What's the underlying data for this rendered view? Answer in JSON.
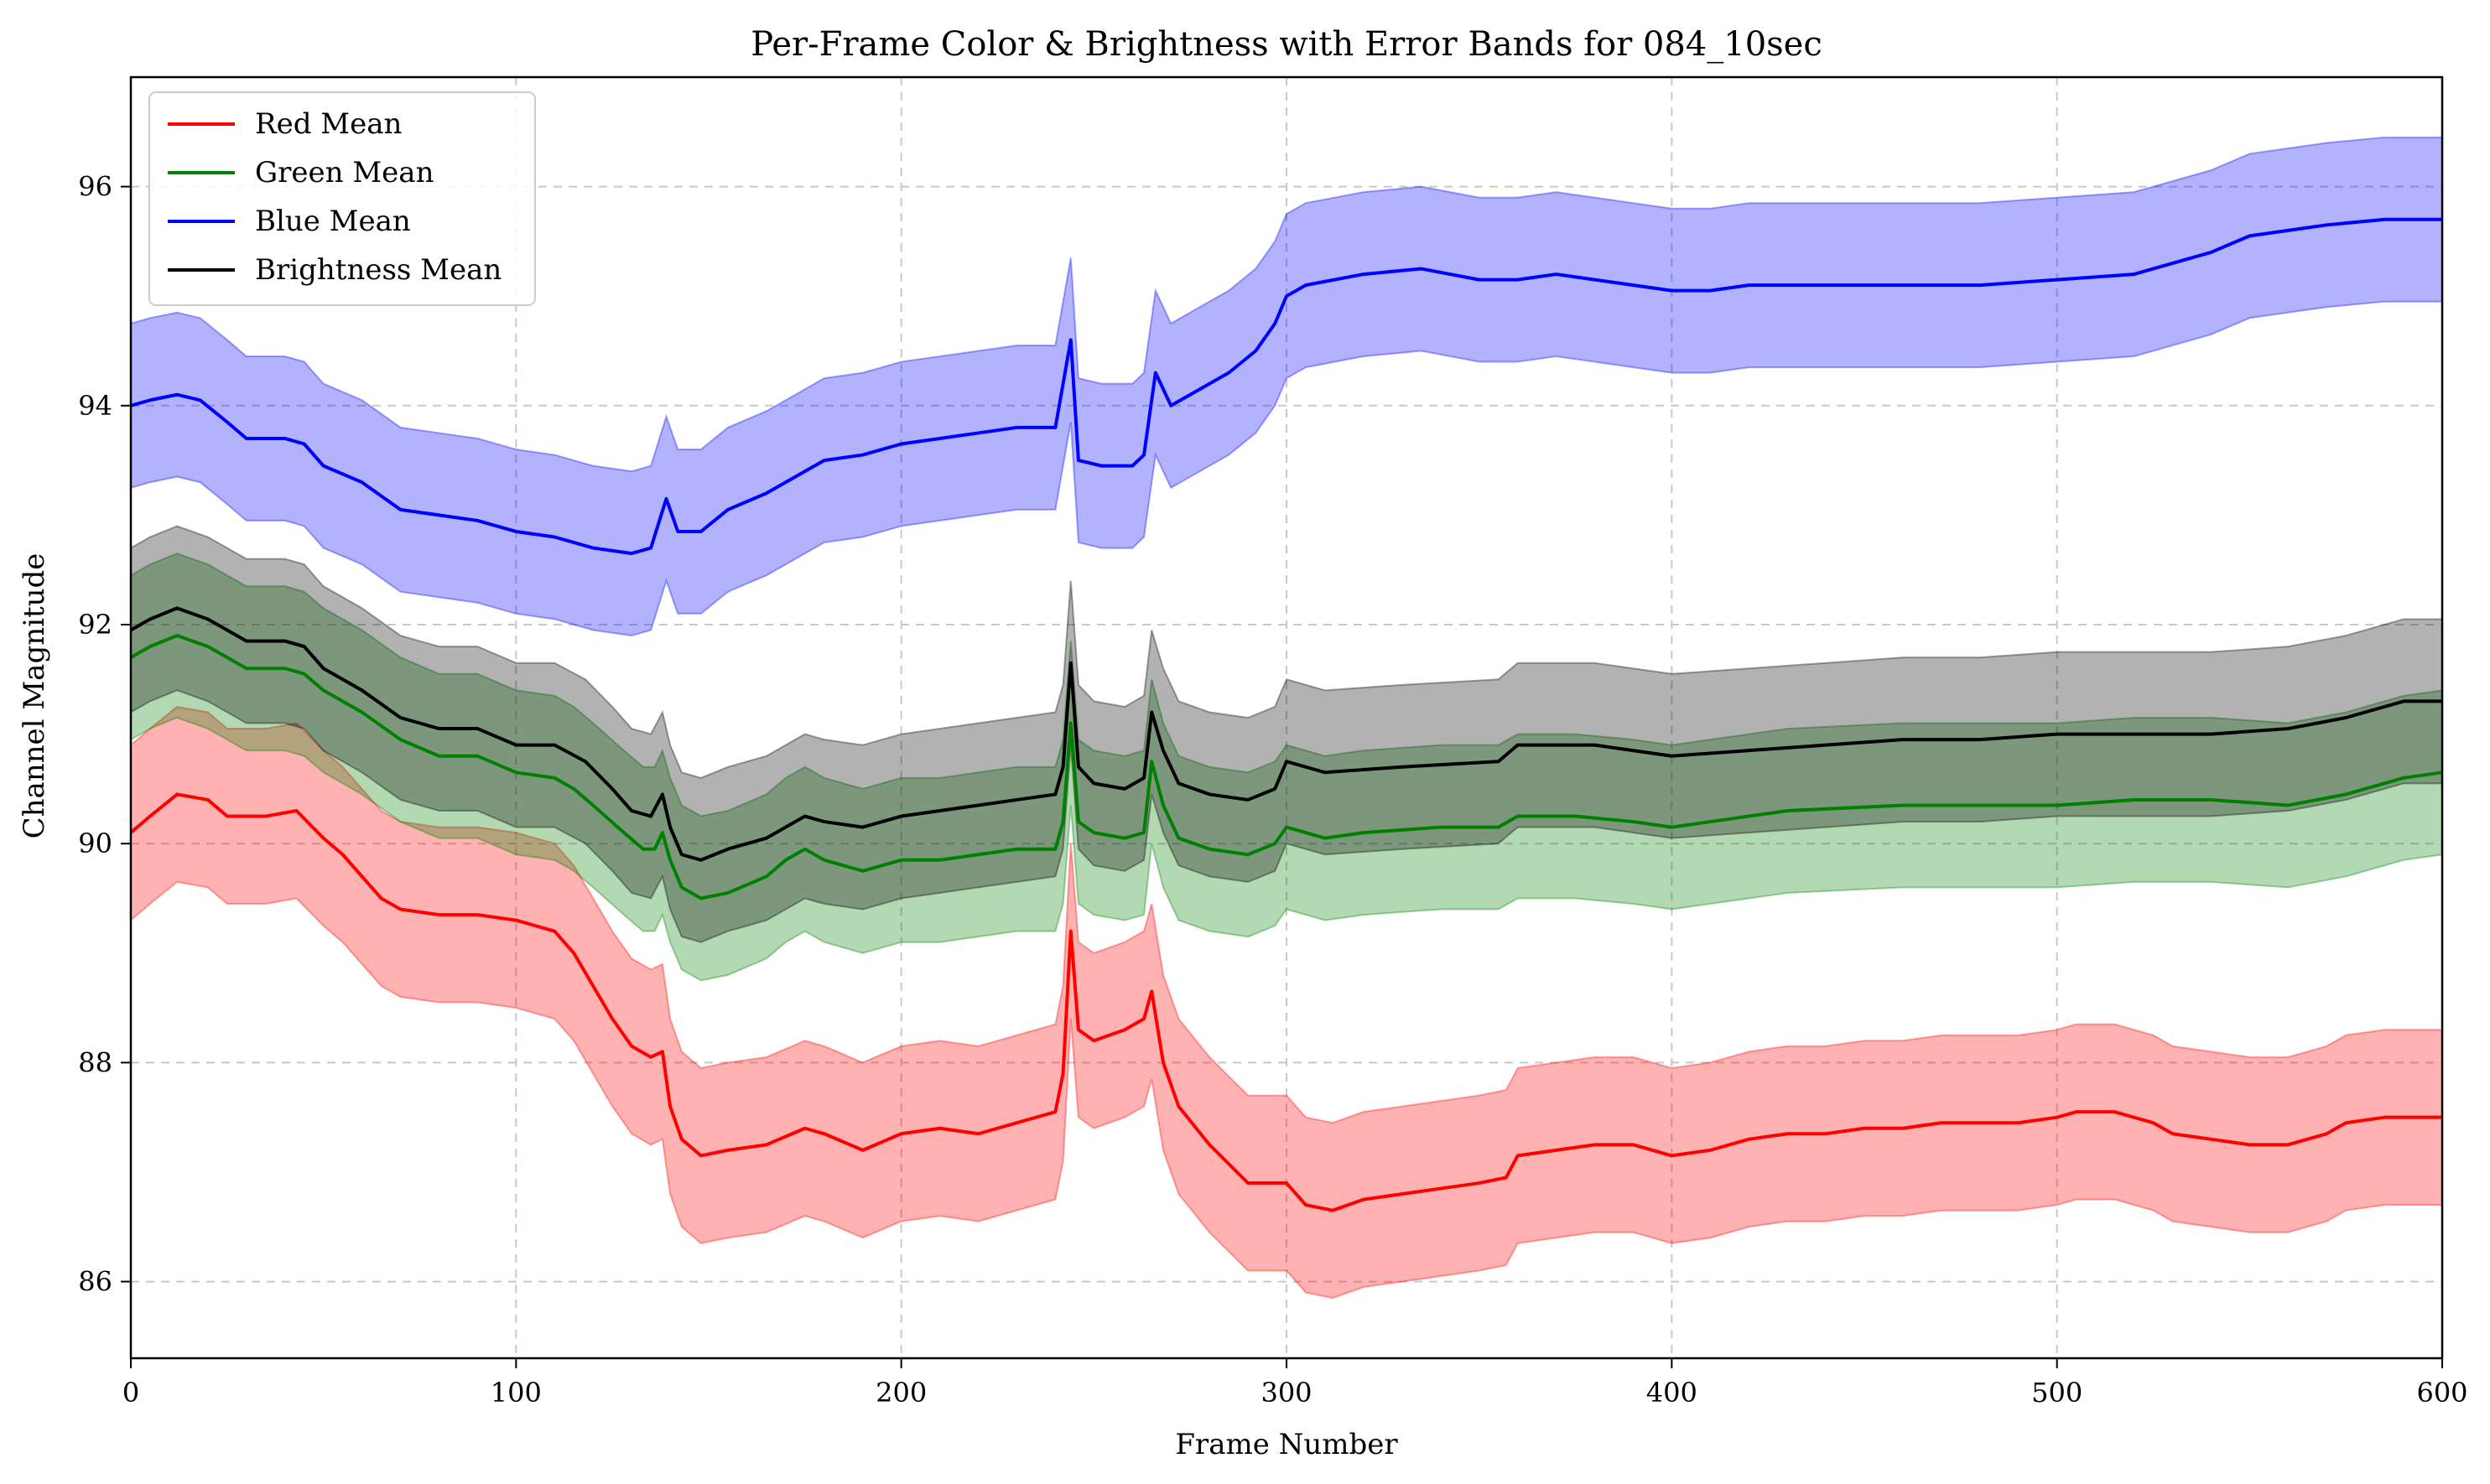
{
  "chart_data": {
    "type": "line",
    "title": "Per-Frame Color & Brightness with Error Bands for 084_10sec",
    "xlabel": "Frame Number",
    "ylabel": "Channel Magnitude",
    "xlim": [
      0,
      600
    ],
    "ylim": [
      85.3,
      97.0
    ],
    "xticks": [
      0,
      100,
      200,
      300,
      400,
      500,
      600
    ],
    "yticks": [
      86,
      88,
      90,
      92,
      94,
      96
    ],
    "grid": true,
    "legend_position": "top-left",
    "series": [
      {
        "name": "Red Mean",
        "color": "#ff0000",
        "band_color": "#ff0000",
        "band_halfwidth": 0.8,
        "points": [
          [
            0,
            90.1
          ],
          [
            5,
            90.25
          ],
          [
            12,
            90.45
          ],
          [
            20,
            90.4
          ],
          [
            25,
            90.25
          ],
          [
            35,
            90.25
          ],
          [
            43,
            90.3
          ],
          [
            50,
            90.05
          ],
          [
            55,
            89.9
          ],
          [
            60,
            89.7
          ],
          [
            65,
            89.5
          ],
          [
            70,
            89.4
          ],
          [
            80,
            89.35
          ],
          [
            90,
            89.35
          ],
          [
            100,
            89.3
          ],
          [
            110,
            89.2
          ],
          [
            115,
            89.0
          ],
          [
            120,
            88.7
          ],
          [
            125,
            88.4
          ],
          [
            130,
            88.15
          ],
          [
            135,
            88.05
          ],
          [
            138,
            88.1
          ],
          [
            140,
            87.6
          ],
          [
            143,
            87.3
          ],
          [
            148,
            87.15
          ],
          [
            155,
            87.2
          ],
          [
            165,
            87.25
          ],
          [
            175,
            87.4
          ],
          [
            180,
            87.35
          ],
          [
            190,
            87.2
          ],
          [
            200,
            87.35
          ],
          [
            210,
            87.4
          ],
          [
            220,
            87.35
          ],
          [
            230,
            87.45
          ],
          [
            240,
            87.55
          ],
          [
            242,
            87.9
          ],
          [
            244,
            89.2
          ],
          [
            246,
            88.3
          ],
          [
            250,
            88.2
          ],
          [
            258,
            88.3
          ],
          [
            263,
            88.4
          ],
          [
            265,
            88.65
          ],
          [
            268,
            88.0
          ],
          [
            272,
            87.6
          ],
          [
            280,
            87.25
          ],
          [
            290,
            86.9
          ],
          [
            300,
            86.9
          ],
          [
            305,
            86.7
          ],
          [
            312,
            86.65
          ],
          [
            320,
            86.75
          ],
          [
            330,
            86.8
          ],
          [
            340,
            86.85
          ],
          [
            350,
            86.9
          ],
          [
            357,
            86.95
          ],
          [
            360,
            87.15
          ],
          [
            370,
            87.2
          ],
          [
            380,
            87.25
          ],
          [
            390,
            87.25
          ],
          [
            400,
            87.15
          ],
          [
            410,
            87.2
          ],
          [
            420,
            87.3
          ],
          [
            430,
            87.35
          ],
          [
            440,
            87.35
          ],
          [
            450,
            87.4
          ],
          [
            460,
            87.4
          ],
          [
            470,
            87.45
          ],
          [
            480,
            87.45
          ],
          [
            490,
            87.45
          ],
          [
            500,
            87.5
          ],
          [
            505,
            87.55
          ],
          [
            515,
            87.55
          ],
          [
            525,
            87.45
          ],
          [
            530,
            87.35
          ],
          [
            540,
            87.3
          ],
          [
            550,
            87.25
          ],
          [
            560,
            87.25
          ],
          [
            570,
            87.35
          ],
          [
            575,
            87.45
          ],
          [
            585,
            87.5
          ],
          [
            600,
            87.5
          ]
        ]
      },
      {
        "name": "Green Mean",
        "color": "#008000",
        "band_color": "#008000",
        "band_halfwidth": 0.75,
        "points": [
          [
            0,
            91.7
          ],
          [
            5,
            91.8
          ],
          [
            12,
            91.9
          ],
          [
            20,
            91.8
          ],
          [
            30,
            91.6
          ],
          [
            40,
            91.6
          ],
          [
            45,
            91.55
          ],
          [
            50,
            91.4
          ],
          [
            60,
            91.2
          ],
          [
            70,
            90.95
          ],
          [
            80,
            90.8
          ],
          [
            90,
            90.8
          ],
          [
            100,
            90.65
          ],
          [
            110,
            90.6
          ],
          [
            115,
            90.5
          ],
          [
            120,
            90.35
          ],
          [
            128,
            90.1
          ],
          [
            133,
            89.95
          ],
          [
            136,
            89.95
          ],
          [
            138,
            90.1
          ],
          [
            140,
            89.85
          ],
          [
            143,
            89.6
          ],
          [
            148,
            89.5
          ],
          [
            155,
            89.55
          ],
          [
            165,
            89.7
          ],
          [
            170,
            89.85
          ],
          [
            175,
            89.95
          ],
          [
            180,
            89.85
          ],
          [
            190,
            89.75
          ],
          [
            200,
            89.85
          ],
          [
            210,
            89.85
          ],
          [
            220,
            89.9
          ],
          [
            230,
            89.95
          ],
          [
            240,
            89.95
          ],
          [
            242,
            90.2
          ],
          [
            244,
            91.1
          ],
          [
            246,
            90.2
          ],
          [
            250,
            90.1
          ],
          [
            258,
            90.05
          ],
          [
            263,
            90.1
          ],
          [
            265,
            90.75
          ],
          [
            268,
            90.35
          ],
          [
            272,
            90.05
          ],
          [
            280,
            89.95
          ],
          [
            290,
            89.9
          ],
          [
            297,
            90.0
          ],
          [
            300,
            90.15
          ],
          [
            310,
            90.05
          ],
          [
            320,
            90.1
          ],
          [
            340,
            90.15
          ],
          [
            355,
            90.15
          ],
          [
            360,
            90.25
          ],
          [
            375,
            90.25
          ],
          [
            390,
            90.2
          ],
          [
            400,
            90.15
          ],
          [
            410,
            90.2
          ],
          [
            430,
            90.3
          ],
          [
            460,
            90.35
          ],
          [
            480,
            90.35
          ],
          [
            500,
            90.35
          ],
          [
            520,
            90.4
          ],
          [
            540,
            90.4
          ],
          [
            560,
            90.35
          ],
          [
            575,
            90.45
          ],
          [
            590,
            90.6
          ],
          [
            600,
            90.65
          ]
        ]
      },
      {
        "name": "Blue Mean",
        "color": "#0000ff",
        "band_color": "#0000ff",
        "band_halfwidth": 0.75,
        "points": [
          [
            0,
            94.0
          ],
          [
            5,
            94.05
          ],
          [
            12,
            94.1
          ],
          [
            18,
            94.05
          ],
          [
            25,
            93.85
          ],
          [
            30,
            93.7
          ],
          [
            40,
            93.7
          ],
          [
            45,
            93.65
          ],
          [
            50,
            93.45
          ],
          [
            60,
            93.3
          ],
          [
            70,
            93.05
          ],
          [
            80,
            93.0
          ],
          [
            90,
            92.95
          ],
          [
            100,
            92.85
          ],
          [
            110,
            92.8
          ],
          [
            120,
            92.7
          ],
          [
            130,
            92.65
          ],
          [
            135,
            92.7
          ],
          [
            139,
            93.15
          ],
          [
            142,
            92.85
          ],
          [
            148,
            92.85
          ],
          [
            155,
            93.05
          ],
          [
            165,
            93.2
          ],
          [
            175,
            93.4
          ],
          [
            180,
            93.5
          ],
          [
            190,
            93.55
          ],
          [
            200,
            93.65
          ],
          [
            210,
            93.7
          ],
          [
            220,
            93.75
          ],
          [
            230,
            93.8
          ],
          [
            240,
            93.8
          ],
          [
            244,
            94.6
          ],
          [
            246,
            93.5
          ],
          [
            252,
            93.45
          ],
          [
            260,
            93.45
          ],
          [
            263,
            93.55
          ],
          [
            266,
            94.3
          ],
          [
            270,
            94.0
          ],
          [
            275,
            94.1
          ],
          [
            285,
            94.3
          ],
          [
            292,
            94.5
          ],
          [
            297,
            94.75
          ],
          [
            300,
            95.0
          ],
          [
            305,
            95.1
          ],
          [
            320,
            95.2
          ],
          [
            335,
            95.25
          ],
          [
            350,
            95.15
          ],
          [
            360,
            95.15
          ],
          [
            370,
            95.2
          ],
          [
            380,
            95.15
          ],
          [
            390,
            95.1
          ],
          [
            400,
            95.05
          ],
          [
            410,
            95.05
          ],
          [
            420,
            95.1
          ],
          [
            440,
            95.1
          ],
          [
            460,
            95.1
          ],
          [
            480,
            95.1
          ],
          [
            500,
            95.15
          ],
          [
            520,
            95.2
          ],
          [
            540,
            95.4
          ],
          [
            550,
            95.55
          ],
          [
            560,
            95.6
          ],
          [
            570,
            95.65
          ],
          [
            585,
            95.7
          ],
          [
            600,
            95.7
          ]
        ]
      },
      {
        "name": "Brightness Mean",
        "color": "#000000",
        "band_color": "#000000",
        "band_halfwidth": 0.75,
        "points": [
          [
            0,
            91.95
          ],
          [
            5,
            92.05
          ],
          [
            12,
            92.15
          ],
          [
            20,
            92.05
          ],
          [
            30,
            91.85
          ],
          [
            40,
            91.85
          ],
          [
            45,
            91.8
          ],
          [
            50,
            91.6
          ],
          [
            60,
            91.4
          ],
          [
            70,
            91.15
          ],
          [
            80,
            91.05
          ],
          [
            90,
            91.05
          ],
          [
            100,
            90.9
          ],
          [
            110,
            90.9
          ],
          [
            118,
            90.75
          ],
          [
            125,
            90.5
          ],
          [
            130,
            90.3
          ],
          [
            135,
            90.25
          ],
          [
            138,
            90.45
          ],
          [
            140,
            90.15
          ],
          [
            143,
            89.9
          ],
          [
            148,
            89.85
          ],
          [
            155,
            89.95
          ],
          [
            165,
            90.05
          ],
          [
            175,
            90.25
          ],
          [
            180,
            90.2
          ],
          [
            190,
            90.15
          ],
          [
            200,
            90.25
          ],
          [
            210,
            90.3
          ],
          [
            220,
            90.35
          ],
          [
            230,
            90.4
          ],
          [
            240,
            90.45
          ],
          [
            242,
            90.7
          ],
          [
            244,
            91.65
          ],
          [
            246,
            90.7
          ],
          [
            250,
            90.55
          ],
          [
            258,
            90.5
          ],
          [
            263,
            90.6
          ],
          [
            265,
            91.2
          ],
          [
            268,
            90.85
          ],
          [
            272,
            90.55
          ],
          [
            280,
            90.45
          ],
          [
            290,
            90.4
          ],
          [
            297,
            90.5
          ],
          [
            300,
            90.75
          ],
          [
            310,
            90.65
          ],
          [
            330,
            90.7
          ],
          [
            355,
            90.75
          ],
          [
            360,
            90.9
          ],
          [
            380,
            90.9
          ],
          [
            400,
            90.8
          ],
          [
            420,
            90.85
          ],
          [
            440,
            90.9
          ],
          [
            460,
            90.95
          ],
          [
            480,
            90.95
          ],
          [
            500,
            91.0
          ],
          [
            520,
            91.0
          ],
          [
            540,
            91.0
          ],
          [
            560,
            91.05
          ],
          [
            575,
            91.15
          ],
          [
            590,
            91.3
          ],
          [
            600,
            91.3
          ]
        ]
      }
    ]
  }
}
